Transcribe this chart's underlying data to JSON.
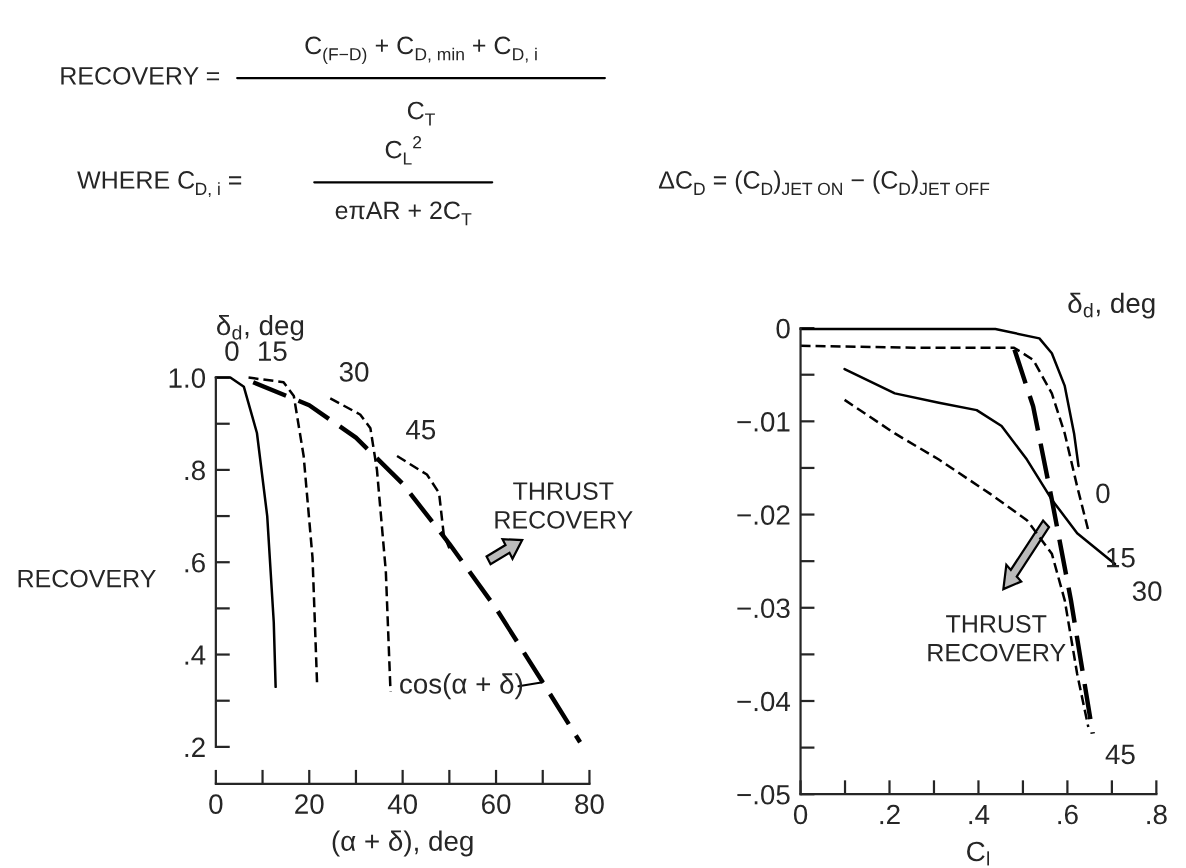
{
  "chart_data": [
    {
      "type": "line",
      "xlabel": "(α + δ), deg",
      "ylabel": "RECOVERY",
      "legend_title": "δ$_{d}$, deg",
      "xlim": [
        0,
        80
      ],
      "ylim": [
        0.12,
        1.0
      ],
      "xticks": [
        0,
        {
          "value": 10,
          "label": null
        },
        20,
        {
          "value": 30,
          "label": null
        },
        40,
        {
          "value": 50,
          "label": null
        },
        60,
        {
          "value": 70,
          "label": null
        },
        80
      ],
      "yticks": [
        {
          "value": 0.2,
          "label": ".2"
        },
        {
          "value": 0.3,
          "label": null
        },
        {
          "value": 0.4,
          "label": ".4"
        },
        {
          "value": 0.5,
          "label": null
        },
        {
          "value": 0.6,
          "label": ".6"
        },
        {
          "value": 0.7,
          "label": null
        },
        {
          "value": 0.8,
          "label": ".8"
        },
        {
          "value": 0.9,
          "label": null
        },
        {
          "value": 1.0,
          "label": "1.0"
        }
      ],
      "grid": false,
      "legend": false,
      "series": [
        {
          "name": "0",
          "color": "#000000",
          "line_style": "solid",
          "x": [
            0,
            3.1,
            6.0,
            8.8,
            11.0,
            12.4,
            12.8
          ],
          "values": [
            1.0,
            1.0,
            0.98,
            0.88,
            0.7,
            0.47,
            0.33
          ]
        },
        {
          "name": "15",
          "color": "#000000",
          "line_style": "dashed",
          "x": [
            7.0,
            14.5,
            16.7,
            18.8,
            20.7,
            21.7
          ],
          "values": [
            1.0,
            0.99,
            0.96,
            0.83,
            0.61,
            0.33
          ]
        },
        {
          "name": "30",
          "color": "#000000",
          "line_style": "dashed",
          "x": [
            24.5,
            30.9,
            33.1,
            34.5,
            36.4,
            37.4
          ],
          "values": [
            0.955,
            0.92,
            0.89,
            0.8,
            0.58,
            0.32
          ]
        },
        {
          "name": "45",
          "color": "#000000",
          "line_style": "dashed",
          "x": [
            38.8,
            45.2,
            47.8,
            48.8,
            50.0
          ],
          "values": [
            0.83,
            0.79,
            0.75,
            0.66,
            0.63
          ]
        },
        {
          "color": "#000000",
          "line_style": "dashed",
          "x": [
            8,
            20,
            30,
            40,
            50,
            60,
            70,
            78
          ],
          "values": [
            0.99,
            0.94,
            0.87,
            0.77,
            0.64,
            0.5,
            0.34,
            0.21
          ]
        }
      ],
      "annotations": [
        "RECOVERY =",
        "C$_{(F−D)}$ + C$_{D, min}$ + C$_{D, i}$",
        "C$_{T}$",
        "WHERE C$_{D, i}$ =",
        "C$_{L}$$^{2}$",
        "eπAR + 2C$_{T}$",
        "ΔC$_{D}$ = (C$_{D}$)$_{JET ON}$ − (C$_{D}$)$_{JET OFF}$",
        "THRUST\nRECOVERY",
        "cos(α + δ)"
      ]
    },
    {
      "type": "line",
      "xlabel": "C$_{l}$",
      "legend_title": "δ$_{d}$, deg",
      "xlim": [
        0,
        0.8
      ],
      "ylim": [
        -0.05,
        0
      ],
      "xticks": [
        0,
        {
          "value": 0.1,
          "label": null
        },
        {
          "value": 0.2,
          "label": ".2"
        },
        {
          "value": 0.3,
          "label": null
        },
        {
          "value": 0.4,
          "label": ".4"
        },
        {
          "value": 0.5,
          "label": null
        },
        {
          "value": 0.6,
          "label": ".6"
        },
        {
          "value": 0.7,
          "label": null
        },
        {
          "value": 0.8,
          "label": ".8"
        }
      ],
      "yticks": [
        {
          "value": -0.05,
          "label": "−.05"
        },
        {
          "value": -0.045,
          "label": null
        },
        {
          "value": -0.04,
          "label": "−.04"
        },
        {
          "value": -0.035,
          "label": null
        },
        {
          "value": -0.03,
          "label": "−.03"
        },
        {
          "value": -0.025,
          "label": null
        },
        {
          "value": -0.02,
          "label": "−.02"
        },
        {
          "value": -0.015,
          "label": null
        },
        {
          "value": -0.01,
          "label": "−.01"
        },
        {
          "value": -0.005,
          "label": null
        },
        0
      ],
      "grid": false,
      "legend": false,
      "series": [
        {
          "name": "0",
          "color": "#000000",
          "line_style": "solid",
          "x": [
            0,
            0.438,
            0.537,
            0.565,
            0.594,
            0.615,
            0.625
          ],
          "values": [
            -0.0001,
            -0.0001,
            -0.0011,
            -0.0027,
            -0.0062,
            -0.0113,
            -0.0148
          ]
        },
        {
          "name": "15",
          "color": "#000000",
          "line_style": "dashed",
          "x": [
            0,
            0.254,
            0.48,
            0.523,
            0.565,
            0.594,
            0.622,
            0.647
          ],
          "values": [
            -0.0019,
            -0.0021,
            -0.0021,
            -0.0034,
            -0.007,
            -0.0113,
            -0.017,
            -0.0217
          ]
        },
        {
          "name": "30",
          "color": "#000000",
          "line_style": "solid",
          "x": [
            0.099,
            0.212,
            0.311,
            0.396,
            0.452,
            0.509,
            0.565,
            0.622,
            0.707
          ],
          "values": [
            -0.0044,
            -0.007,
            -0.008,
            -0.0088,
            -0.0105,
            -0.0141,
            -0.0184,
            -0.022,
            -0.0253
          ]
        },
        {
          "name": "45",
          "color": "#000000",
          "line_style": "dashed",
          "x": [
            0.099,
            0.212,
            0.311,
            0.424,
            0.509,
            0.565,
            0.594,
            0.622,
            0.647
          ],
          "values": [
            -0.0077,
            -0.0113,
            -0.0141,
            -0.0177,
            -0.0206,
            -0.0242,
            -0.0292,
            -0.0371,
            -0.0428
          ]
        },
        {
          "color": "#000000",
          "line_style": "dashed",
          "x": [
            0.481,
            0.523,
            0.565,
            0.608,
            0.657
          ],
          "values": [
            -0.0023,
            -0.0084,
            -0.0184,
            -0.0292,
            -0.0435
          ]
        }
      ],
      "annotations": [
        "THRUST\nRECOVERY"
      ]
    }
  ]
}
